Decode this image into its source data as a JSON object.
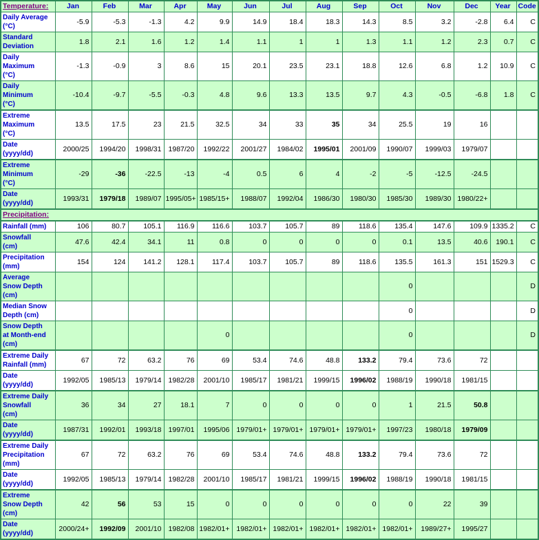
{
  "colors": {
    "row_alt_bg": "#ccffcc",
    "border_green": "#2e8b57",
    "label_blue": "#0000cc",
    "section_link_purple": "#800080",
    "data_text": "#000000"
  },
  "table": {
    "columns": [
      "Jan",
      "Feb",
      "Mar",
      "Apr",
      "May",
      "Jun",
      "Jul",
      "Aug",
      "Sep",
      "Oct",
      "Nov",
      "Dec",
      "Year",
      "Code"
    ],
    "rows": [
      {
        "type": "header",
        "bg": "green",
        "label": "Temperature:",
        "cells": [
          "Jan",
          "Feb",
          "Mar",
          "Apr",
          "May",
          "Jun",
          "Jul",
          "Aug",
          "Sep",
          "Oct",
          "Nov",
          "Dec",
          "Year",
          "Code"
        ]
      },
      {
        "type": "data",
        "bg": "white",
        "label": "Daily Average\n(°C)",
        "cells": [
          "-5.9",
          "-5.3",
          "-1.3",
          "4.2",
          "9.9",
          "14.9",
          "18.4",
          "18.3",
          "14.3",
          "8.5",
          "3.2",
          "-2.8",
          "6.4",
          "C"
        ],
        "bold": []
      },
      {
        "type": "data",
        "bg": "green",
        "label": "Standard\nDeviation",
        "cells": [
          "1.8",
          "2.1",
          "1.6",
          "1.2",
          "1.4",
          "1.1",
          "1",
          "1",
          "1.3",
          "1.1",
          "1.2",
          "2.3",
          "0.7",
          "C"
        ],
        "bold": []
      },
      {
        "type": "data",
        "bg": "white",
        "label": "Daily\nMaximum\n(°C)",
        "cells": [
          "-1.3",
          "-0.9",
          "3",
          "8.6",
          "15",
          "20.1",
          "23.5",
          "23.1",
          "18.8",
          "12.6",
          "6.8",
          "1.2",
          "10.9",
          "C"
        ],
        "bold": []
      },
      {
        "type": "data",
        "bg": "green",
        "label": "Daily\nMinimum\n(°C)",
        "cells": [
          "-10.4",
          "-9.7",
          "-5.5",
          "-0.3",
          "4.8",
          "9.6",
          "13.3",
          "13.5",
          "9.7",
          "4.3",
          "-0.5",
          "-6.8",
          "1.8",
          "C"
        ],
        "bold": []
      },
      {
        "type": "data",
        "bg": "white",
        "group_start": true,
        "label": "Extreme\nMaximum\n(°C)",
        "cells": [
          "13.5",
          "17.5",
          "23",
          "21.5",
          "32.5",
          "34",
          "33",
          "35",
          "34",
          "25.5",
          "19",
          "16",
          "",
          ""
        ],
        "bold": [
          7
        ]
      },
      {
        "type": "data",
        "bg": "white",
        "label": "Date\n(yyyy/dd)",
        "cells": [
          "2000/25",
          "1994/20",
          "1998/31",
          "1987/20",
          "1992/22",
          "2001/27",
          "1984/02",
          "1995/01",
          "2001/09",
          "1990/07",
          "1999/03",
          "1979/07",
          "",
          ""
        ],
        "bold": [
          7
        ]
      },
      {
        "type": "data",
        "bg": "green",
        "group_start": true,
        "label": "Extreme\nMinimum\n(°C)",
        "cells": [
          "-29",
          "-36",
          "-22.5",
          "-13",
          "-4",
          "0.5",
          "6",
          "4",
          "-2",
          "-5",
          "-12.5",
          "-24.5",
          "",
          ""
        ],
        "bold": [
          1
        ]
      },
      {
        "type": "data",
        "bg": "green",
        "label": "Date\n(yyyy/dd)",
        "cells": [
          "1993/31",
          "1979/18",
          "1989/07",
          "1995/05+",
          "1985/15+",
          "1988/07",
          "1992/04",
          "1986/30",
          "1980/30",
          "1985/30",
          "1989/30",
          "1980/22+",
          "",
          ""
        ],
        "bold": [
          1
        ]
      },
      {
        "type": "section",
        "bg": "green",
        "group_start": true,
        "label": "Precipitation:"
      },
      {
        "type": "data",
        "bg": "white",
        "group_start": true,
        "label": "Rainfall (mm)",
        "cells": [
          "106",
          "80.7",
          "105.1",
          "116.9",
          "116.6",
          "103.7",
          "105.7",
          "89",
          "118.6",
          "135.4",
          "147.6",
          "109.9",
          "1335.2",
          "C"
        ],
        "bold": []
      },
      {
        "type": "data",
        "bg": "green",
        "label": "Snowfall\n(cm)",
        "cells": [
          "47.6",
          "42.4",
          "34.1",
          "11",
          "0.8",
          "0",
          "0",
          "0",
          "0",
          "0.1",
          "13.5",
          "40.6",
          "190.1",
          "C"
        ],
        "bold": []
      },
      {
        "type": "data",
        "bg": "white",
        "label": "Precipitation\n(mm)",
        "cells": [
          "154",
          "124",
          "141.2",
          "128.1",
          "117.4",
          "103.7",
          "105.7",
          "89",
          "118.6",
          "135.5",
          "161.3",
          "151",
          "1529.3",
          "C"
        ],
        "bold": []
      },
      {
        "type": "data",
        "bg": "green",
        "label": "Average\nSnow Depth\n(cm)",
        "cells": [
          "",
          "",
          "",
          "",
          "",
          "",
          "",
          "",
          "",
          "0",
          "",
          "",
          "",
          "D"
        ],
        "bold": []
      },
      {
        "type": "data",
        "bg": "white",
        "label": "Median Snow\nDepth (cm)",
        "cells": [
          "",
          "",
          "",
          "",
          "",
          "",
          "",
          "",
          "",
          "0",
          "",
          "",
          "",
          "D"
        ],
        "bold": []
      },
      {
        "type": "data",
        "bg": "green",
        "label": "Snow Depth\nat Month-end\n(cm)",
        "cells": [
          "",
          "",
          "",
          "",
          "0",
          "",
          "",
          "",
          "",
          "0",
          "",
          "",
          "",
          "D"
        ],
        "bold": []
      },
      {
        "type": "data",
        "bg": "white",
        "group_start": true,
        "label": "Extreme Daily\nRainfall (mm)",
        "cells": [
          "67",
          "72",
          "63.2",
          "76",
          "69",
          "53.4",
          "74.6",
          "48.8",
          "133.2",
          "79.4",
          "73.6",
          "72",
          "",
          ""
        ],
        "bold": [
          8
        ]
      },
      {
        "type": "data",
        "bg": "white",
        "label": "Date\n(yyyy/dd)",
        "cells": [
          "1992/05",
          "1985/13",
          "1979/14",
          "1982/28",
          "2001/10",
          "1985/17",
          "1981/21",
          "1999/15",
          "1996/02",
          "1988/19",
          "1990/18",
          "1981/15",
          "",
          ""
        ],
        "bold": [
          8
        ]
      },
      {
        "type": "data",
        "bg": "green",
        "group_start": true,
        "label": "Extreme Daily\nSnowfall\n(cm)",
        "cells": [
          "36",
          "34",
          "27",
          "18.1",
          "7",
          "0",
          "0",
          "0",
          "0",
          "1",
          "21.5",
          "50.8",
          "",
          ""
        ],
        "bold": [
          11
        ]
      },
      {
        "type": "data",
        "bg": "green",
        "label": "Date\n(yyyy/dd)",
        "cells": [
          "1987/31",
          "1992/01",
          "1993/18",
          "1997/01",
          "1995/06",
          "1979/01+",
          "1979/01+",
          "1979/01+",
          "1979/01+",
          "1997/23",
          "1980/18",
          "1979/09",
          "",
          ""
        ],
        "bold": [
          11
        ]
      },
      {
        "type": "data",
        "bg": "white",
        "group_start": true,
        "label": "Extreme Daily\nPrecipitation\n(mm)",
        "cells": [
          "67",
          "72",
          "63.2",
          "76",
          "69",
          "53.4",
          "74.6",
          "48.8",
          "133.2",
          "79.4",
          "73.6",
          "72",
          "",
          ""
        ],
        "bold": [
          8
        ]
      },
      {
        "type": "data",
        "bg": "white",
        "label": "Date\n(yyyy/dd)",
        "cells": [
          "1992/05",
          "1985/13",
          "1979/14",
          "1982/28",
          "2001/10",
          "1985/17",
          "1981/21",
          "1999/15",
          "1996/02",
          "1988/19",
          "1990/18",
          "1981/15",
          "",
          ""
        ],
        "bold": [
          8
        ]
      },
      {
        "type": "data",
        "bg": "green",
        "group_start": true,
        "label": "Extreme\nSnow Depth\n(cm)",
        "cells": [
          "42",
          "56",
          "53",
          "15",
          "0",
          "0",
          "0",
          "0",
          "0",
          "0",
          "22",
          "39",
          "",
          ""
        ],
        "bold": [
          1
        ]
      },
      {
        "type": "data",
        "bg": "green",
        "label": "Date\n(yyyy/dd)",
        "cells": [
          "2000/24+",
          "1992/09",
          "2001/10",
          "1982/08",
          "1982/01+",
          "1982/01+",
          "1982/01+",
          "1982/01+",
          "1982/01+",
          "1982/01+",
          "1989/27+",
          "1995/27",
          "",
          ""
        ],
        "bold": [
          1
        ]
      }
    ]
  }
}
